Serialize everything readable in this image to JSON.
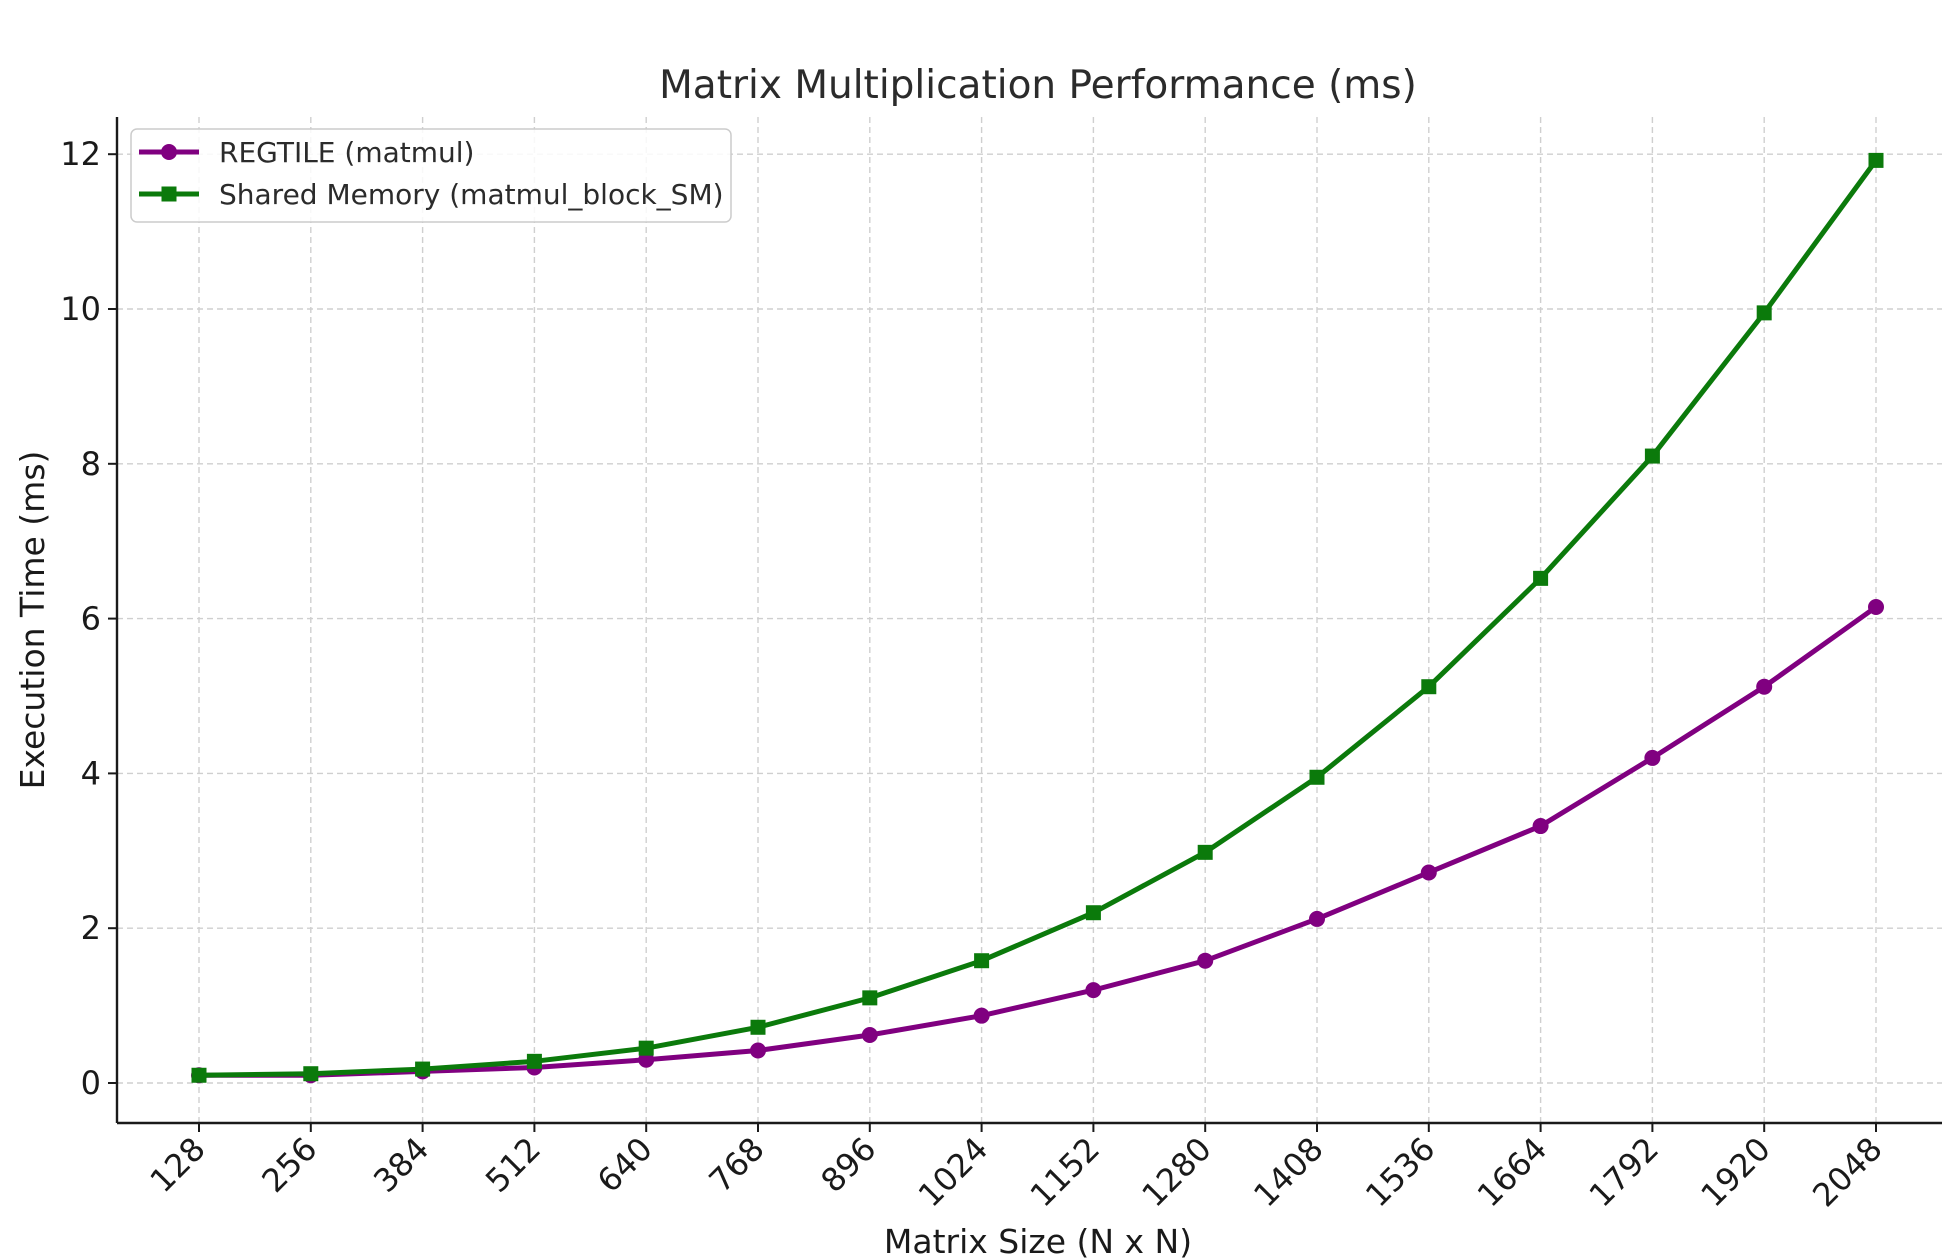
{
  "chart_data": {
    "type": "line",
    "title": "Matrix Multiplication Performance (ms)",
    "xlabel": "Matrix Size (N x N)",
    "ylabel": "Execution Time (ms)",
    "categories": [
      "128",
      "256",
      "384",
      "512",
      "640",
      "768",
      "896",
      "1024",
      "1152",
      "1280",
      "1408",
      "1536",
      "1664",
      "1792",
      "1920",
      "2048"
    ],
    "x": [
      128,
      256,
      384,
      512,
      640,
      768,
      896,
      1024,
      1152,
      1280,
      1408,
      1536,
      1664,
      1792,
      1920,
      2048
    ],
    "ylim": [
      -0.5,
      12.5
    ],
    "yticks": [
      0,
      2,
      4,
      6,
      8,
      10,
      12
    ],
    "grid": true,
    "legend_position": "top-left",
    "series": [
      {
        "name": "REGTILE (matmul)",
        "color": "#800080",
        "marker": "circle",
        "values": [
          0.1,
          0.1,
          0.15,
          0.2,
          0.3,
          0.42,
          0.62,
          0.87,
          1.2,
          1.58,
          2.12,
          2.72,
          3.32,
          4.2,
          5.12,
          6.15
        ]
      },
      {
        "name": "Shared Memory (matmul_block_SM)",
        "color": "#0b7a0b",
        "marker": "square",
        "values": [
          0.1,
          0.12,
          0.18,
          0.28,
          0.45,
          0.72,
          1.1,
          1.58,
          2.2,
          2.98,
          3.95,
          5.12,
          6.52,
          8.1,
          9.95,
          11.92
        ]
      }
    ]
  }
}
